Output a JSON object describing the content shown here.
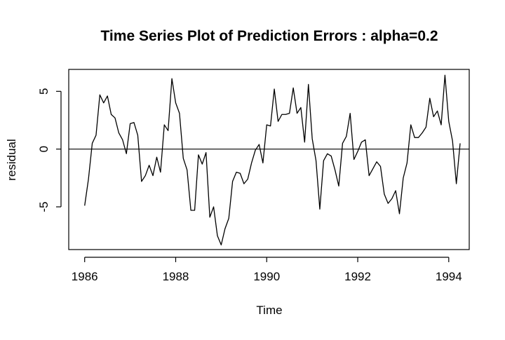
{
  "chart_data": {
    "type": "line",
    "title": "Time Series Plot of Prediction Errors : alpha=0.2",
    "xlabel": "Time",
    "ylabel": "residual",
    "xlim": [
      1985.65,
      1994.45
    ],
    "ylim": [
      -8.7,
      6.9
    ],
    "xticks": [
      1986,
      1988,
      1990,
      1992,
      1994
    ],
    "xtick_labels": [
      "1986",
      "1988",
      "1990",
      "1992",
      "1994"
    ],
    "yticks": [
      -5,
      0,
      5
    ],
    "ytick_labels": [
      "-5",
      "0",
      "5"
    ],
    "reference_line": 0,
    "grid": false,
    "legend": "none",
    "line_color": "#000000",
    "series": [
      {
        "start": 1986,
        "frequency": 12,
        "values": [
          -4.9,
          -2.6,
          0.5,
          1.2,
          4.7,
          4.0,
          4.6,
          3.0,
          2.7,
          1.4,
          0.8,
          -0.4,
          2.2,
          2.3,
          1.2,
          -2.8,
          -2.3,
          -1.4,
          -2.3,
          -0.7,
          -2.0,
          2.1,
          1.6,
          6.1,
          4.0,
          3.1,
          -0.8,
          -1.8,
          -5.3,
          -5.3,
          -0.5,
          -1.3,
          -0.3,
          -5.9,
          -5.0,
          -7.5,
          -8.3,
          -6.9,
          -6.0,
          -2.8,
          -2.0,
          -2.1,
          -3.0,
          -2.6,
          -1.2,
          -0.1,
          0.4,
          -1.2,
          2.1,
          2.0,
          5.2,
          2.4,
          3.0,
          3.0,
          3.1,
          5.3,
          3.1,
          3.6,
          0.6,
          5.6,
          0.9,
          -1.0,
          -5.2,
          -1.0,
          -0.4,
          -0.6,
          -1.8,
          -3.2,
          0.5,
          1.1,
          3.1,
          -0.9,
          -0.2,
          0.6,
          0.8,
          -2.3,
          -1.7,
          -1.1,
          -1.5,
          -3.9,
          -4.7,
          -4.3,
          -3.6,
          -5.6,
          -2.5,
          -1.2,
          2.1,
          1.0,
          1.0,
          1.4,
          1.9,
          4.4,
          2.8,
          3.3,
          2.1,
          6.4,
          2.4,
          0.7,
          -3.0,
          0.5
        ]
      }
    ]
  }
}
